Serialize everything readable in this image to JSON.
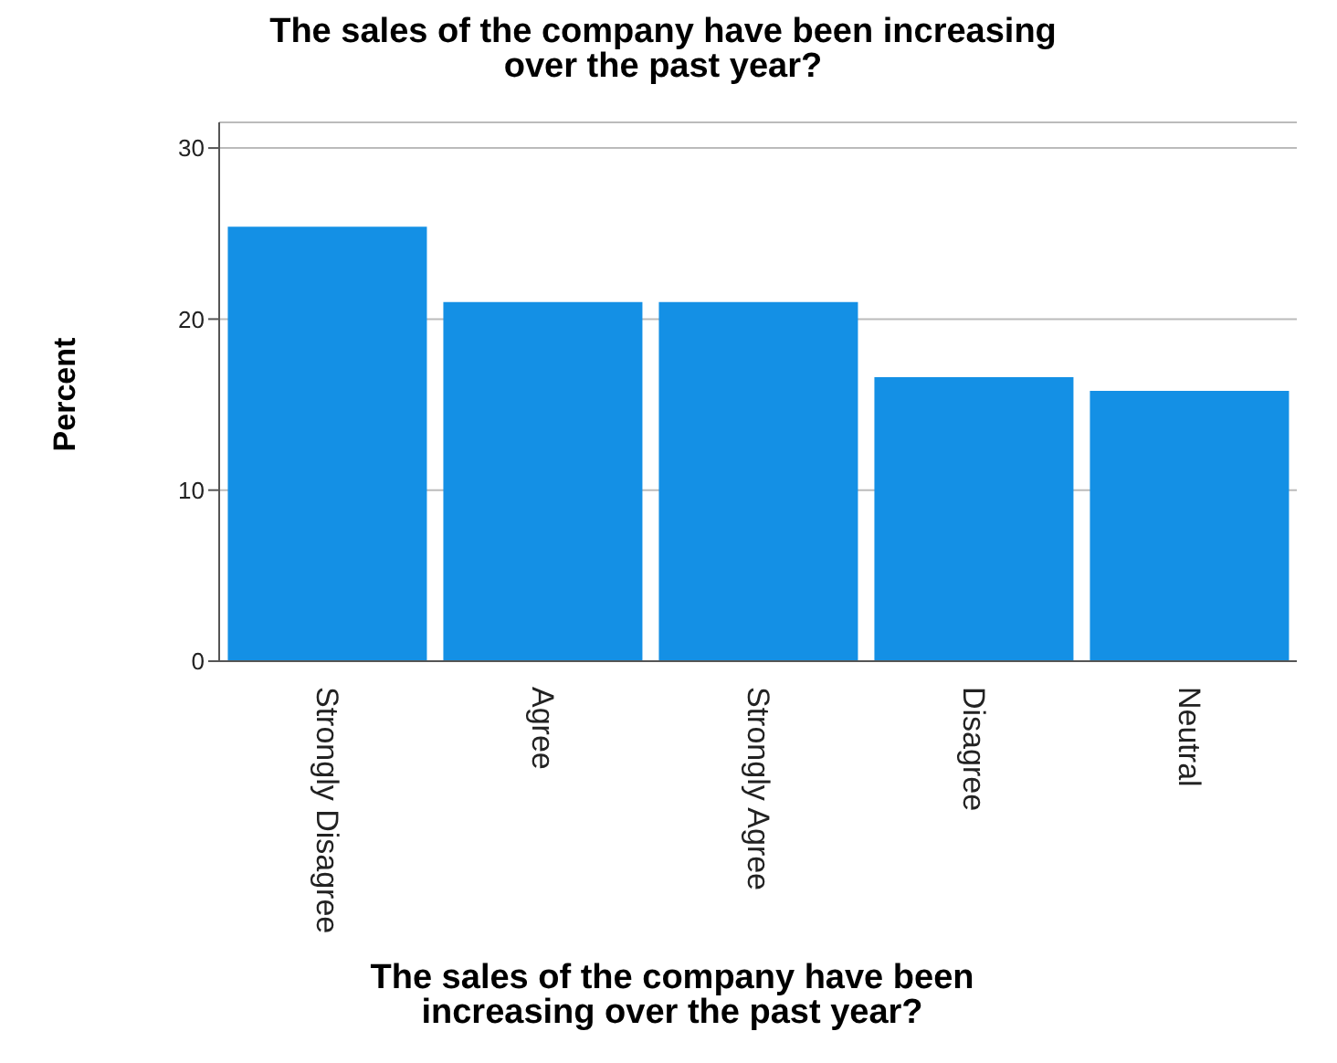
{
  "chart_data": {
    "type": "bar",
    "title": "The sales of the company have been increasing\nover the past  year?",
    "xlabel": "The sales of the company have been\nincreasing over the past  year?",
    "ylabel": "Percent",
    "categories": [
      "Strongly Disagree",
      "Agree",
      "Strongly Agree",
      "Disagree",
      "Neutral"
    ],
    "values": [
      25.4,
      21.0,
      21.0,
      16.6,
      15.8
    ],
    "color": "#1490e5",
    "ylim": [
      0,
      31.5
    ],
    "yticks": [
      0,
      10,
      20,
      30
    ],
    "grid": "y"
  }
}
